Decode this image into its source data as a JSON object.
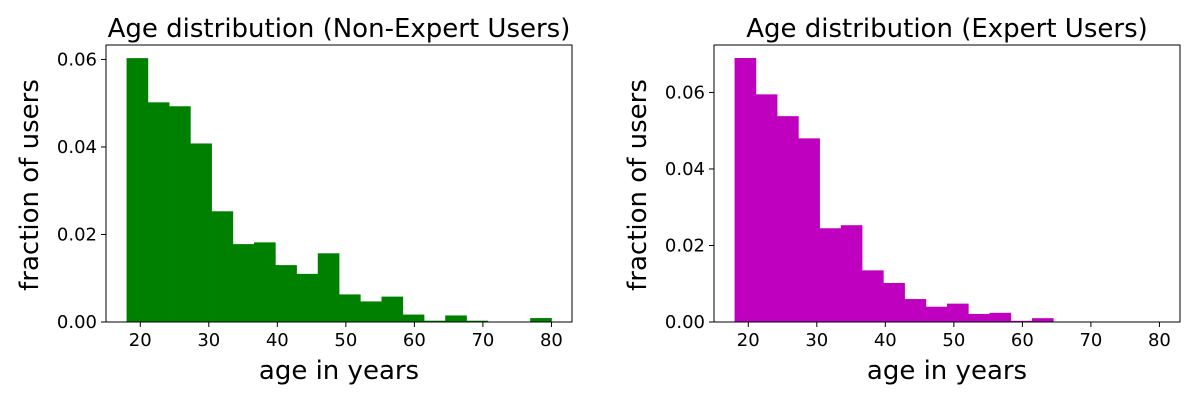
{
  "chart_data": [
    {
      "type": "bar",
      "title": "Age distribution (Non-Expert Users)",
      "xlabel": "age in years",
      "ylabel": "fraction of users",
      "xlim": [
        15,
        83
      ],
      "ylim": [
        0,
        0.0633
      ],
      "xticks": [
        "20",
        "30",
        "40",
        "50",
        "60",
        "70",
        "80"
      ],
      "yticks": [
        "0.00",
        "0.02",
        "0.04",
        "0.06"
      ],
      "color": "#008000",
      "bin_edges": [
        18,
        21.1,
        24.2,
        27.3,
        30.4,
        33.5,
        36.6,
        39.7,
        42.8,
        45.9,
        49,
        52.1,
        55.2,
        58.3,
        61.4,
        64.5,
        67.6,
        70.7,
        73.8,
        76.9,
        80
      ],
      "values": [
        0.0603,
        0.0502,
        0.0493,
        0.0408,
        0.0253,
        0.0178,
        0.0182,
        0.013,
        0.011,
        0.0157,
        0.0063,
        0.0047,
        0.0058,
        0.0017,
        0.0003,
        0.0015,
        0.0003,
        0.0,
        0.0,
        0.0009
      ],
      "grid": false
    },
    {
      "type": "bar",
      "title": "Age distribution (Expert Users)",
      "xlabel": "age in years",
      "ylabel": "fraction of users",
      "xlim": [
        15,
        83
      ],
      "ylim": [
        0,
        0.0724
      ],
      "xticks": [
        "20",
        "30",
        "40",
        "50",
        "60",
        "70",
        "80"
      ],
      "yticks": [
        "0.00",
        "0.02",
        "0.04",
        "0.06"
      ],
      "color": "#BF00BF",
      "bin_edges": [
        18,
        21.1,
        24.2,
        27.3,
        30.4,
        33.5,
        36.6,
        39.7,
        42.8,
        45.9,
        49,
        52.1,
        55.2,
        58.3,
        61.4,
        64.5,
        67.6,
        70.7,
        73.8,
        76.9,
        80
      ],
      "values": [
        0.069,
        0.0595,
        0.0538,
        0.048,
        0.0245,
        0.0253,
        0.0135,
        0.0102,
        0.006,
        0.004,
        0.0048,
        0.0021,
        0.0024,
        0.0003,
        0.001,
        0.0,
        0.0,
        0.0,
        0.0,
        0.0
      ],
      "grid": false
    }
  ]
}
